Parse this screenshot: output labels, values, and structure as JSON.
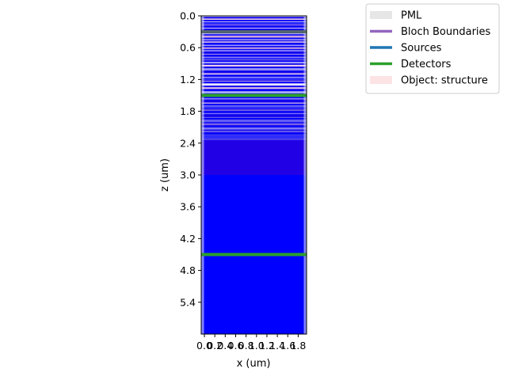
{
  "chart_data": {
    "type": "simulation-layout",
    "xlabel": "x (um)",
    "ylabel": "z (um)",
    "xlim": [
      0.0,
      1.9
    ],
    "ylim": [
      6.0,
      0.0
    ],
    "x_ticks": [
      "0.0",
      "0.2",
      "0.4",
      "0.6",
      "0.8",
      "1.0",
      "1.2",
      "1.4",
      "1.6",
      "1.8"
    ],
    "y_ticks": [
      "0.0",
      "0.6",
      "1.2",
      "1.8",
      "2.4",
      "3.0",
      "3.6",
      "4.2",
      "4.8",
      "5.4"
    ],
    "x_tick_values": [
      0.0,
      0.2,
      0.4,
      0.6,
      0.8,
      1.0,
      1.2,
      1.4,
      1.6,
      1.8
    ],
    "y_tick_values": [
      0.0,
      0.6,
      1.2,
      1.8,
      2.4,
      3.0,
      3.6,
      4.2,
      4.8,
      5.4
    ],
    "legend": {
      "placement": "upper-right-outside",
      "entries": [
        {
          "label": "PML",
          "color": "#e6e6e6",
          "style": "band"
        },
        {
          "label": "Bloch Boundaries",
          "color": "#9467bd",
          "style": "line"
        },
        {
          "label": "Sources",
          "color": "#1f77b4",
          "style": "line"
        },
        {
          "label": "Detectors",
          "color": "#2ca02c",
          "style": "line"
        },
        {
          "label": "Object: structure",
          "color": "#fde3e3",
          "style": "band"
        }
      ]
    },
    "detectors_z": [
      1.5,
      4.5
    ],
    "sources_z": [
      0.3
    ],
    "regions": [
      {
        "z_start": 0.0,
        "z_end": 2.35,
        "kind": "multilayer"
      },
      {
        "z_start": 2.35,
        "z_end": 3.0,
        "kind": "violet-block",
        "color": "#2200e6"
      },
      {
        "z_start": 3.0,
        "z_end": 6.0,
        "kind": "substrate",
        "color": "#0000ff"
      }
    ]
  }
}
